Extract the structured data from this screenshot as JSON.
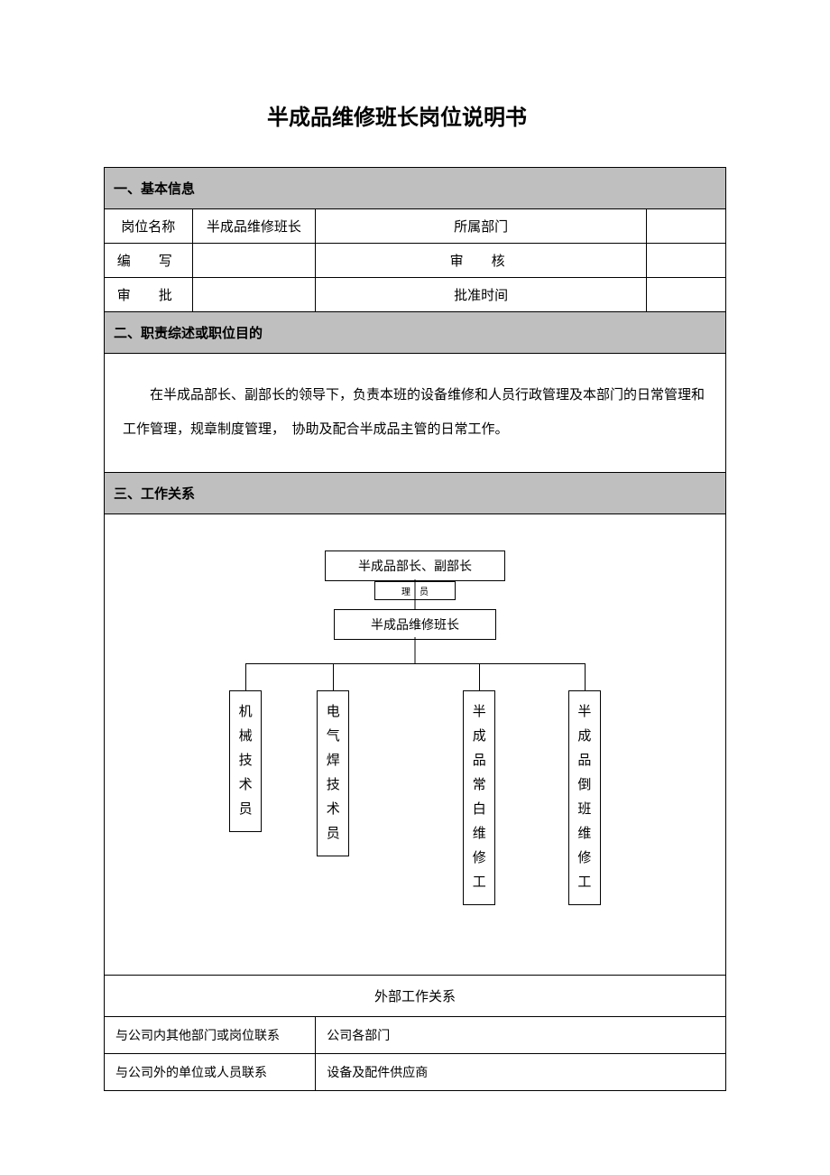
{
  "title": "半成品维修班长岗位说明书",
  "sections": {
    "basic_info": {
      "header": "一、基本信息",
      "rows": [
        {
          "label1": "岗位名称",
          "value1": "半成品维修班长",
          "label2": "所属部门",
          "value2": ""
        },
        {
          "label1": "编　写",
          "value1": "",
          "label2": "审　核",
          "value2": ""
        },
        {
          "label1": "审　批",
          "value1": "",
          "label2": "批准时间",
          "value2": ""
        }
      ]
    },
    "summary": {
      "header": "二、职责综述或职位目的",
      "text": "在半成品部长、副部长的领导下，负责本班的设备维修和人员行政管理及本部门的日常管理和工作管理，规章制度管理，　协助及配合半成品主管的日常工作。"
    },
    "relations": {
      "header": "三、工作关系",
      "org_chart": {
        "top": "半成品部长、副部长",
        "small_behind": "理　员",
        "mid": "半成品维修班长",
        "leaves": [
          {
            "label": "机械技术员",
            "pos_pct": 21
          },
          {
            "label": "电气焊技术员",
            "pos_pct": 36
          },
          {
            "label": "半成品常白维修工",
            "pos_pct": 61
          },
          {
            "label": "半成品倒班维修工",
            "pos_pct": 79
          }
        ]
      },
      "external": {
        "header": "外部工作关系",
        "rows": [
          {
            "label": "与公司内其他部门或岗位联系",
            "value": "公司各部门"
          },
          {
            "label": "与公司外的单位或人员联系",
            "value": "设备及配件供应商"
          }
        ]
      }
    }
  },
  "colors": {
    "section_bg": "#bfbfbf",
    "border": "#000000",
    "text": "#000000",
    "page_bg": "#ffffff"
  }
}
